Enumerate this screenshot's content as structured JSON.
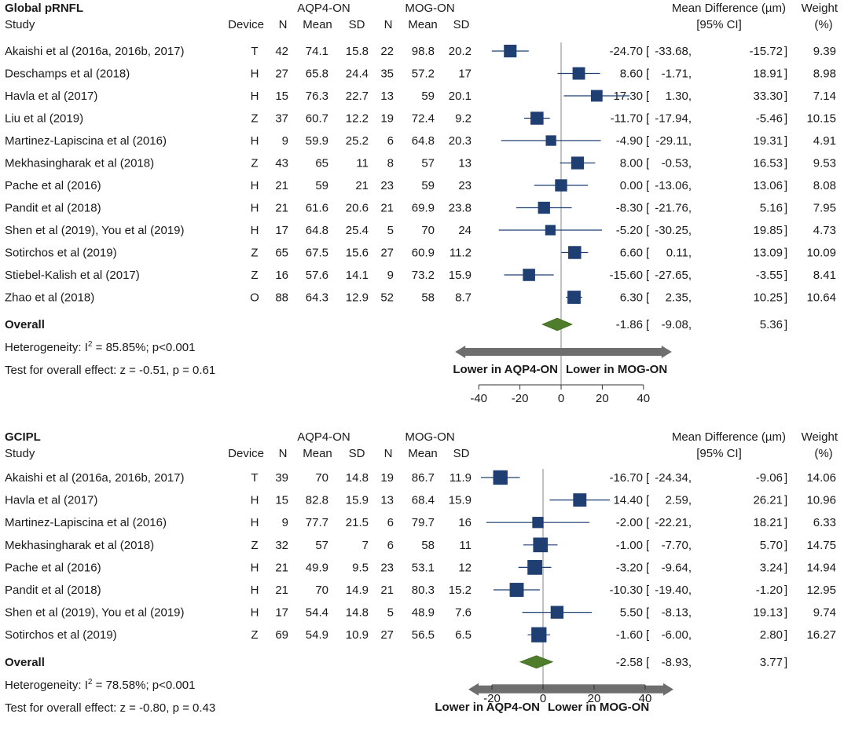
{
  "chart_data": [
    {
      "type": "forest",
      "title": "Global pRNFL",
      "columns": {
        "study": "Study",
        "device": "Device",
        "group1": "AQP4-ON",
        "group2": "MOG-ON",
        "n": "N",
        "mean": "Mean",
        "sd": "SD",
        "effect": "Mean Difference (µm)",
        "ci": "[95% CI]",
        "weight": "Weight",
        "weight_unit": "(%)"
      },
      "rows": [
        {
          "study": "Akaishi et al (2016a, 2016b, 2017)",
          "device": "T",
          "n1": "42",
          "mean1": "74.1",
          "sd1": "15.8",
          "n2": "22",
          "mean2": "98.8",
          "sd2": "20.2",
          "md": -24.7,
          "lo": -33.68,
          "hi": -15.72,
          "md_text": "-24.70",
          "lo_text": "-33.68,",
          "hi_text": "-15.72",
          "weight": 9.39,
          "weight_text": "9.39"
        },
        {
          "study": "Deschamps et al (2018)",
          "device": "H",
          "n1": "27",
          "mean1": "65.8",
          "sd1": "24.4",
          "n2": "35",
          "mean2": "57.2",
          "sd2": "17",
          "md": 8.6,
          "lo": -1.71,
          "hi": 18.91,
          "md_text": "8.60",
          "lo_text": "-1.71,",
          "hi_text": "18.91",
          "weight": 8.98,
          "weight_text": "8.98"
        },
        {
          "study": "Havla et al (2017)",
          "device": "H",
          "n1": "15",
          "mean1": "76.3",
          "sd1": "22.7",
          "n2": "13",
          "mean2": "59",
          "sd2": "20.1",
          "md": 17.3,
          "lo": 1.3,
          "hi": 33.3,
          "md_text": "17.30",
          "lo_text": "1.30,",
          "hi_text": "33.30",
          "weight": 7.14,
          "weight_text": "7.14"
        },
        {
          "study": "Liu et al (2019)",
          "device": "Z",
          "n1": "37",
          "mean1": "60.7",
          "sd1": "12.2",
          "n2": "19",
          "mean2": "72.4",
          "sd2": "9.2",
          "md": -11.7,
          "lo": -17.94,
          "hi": -5.46,
          "md_text": "-11.70",
          "lo_text": "-17.94,",
          "hi_text": "-5.46",
          "weight": 10.15,
          "weight_text": "10.15"
        },
        {
          "study": "Martinez-Lapiscina et al (2016)",
          "device": "H",
          "n1": "9",
          "mean1": "59.9",
          "sd1": "25.2",
          "n2": "6",
          "mean2": "64.8",
          "sd2": "20.3",
          "md": -4.9,
          "lo": -29.11,
          "hi": 19.31,
          "md_text": "-4.90",
          "lo_text": "-29.11,",
          "hi_text": "19.31",
          "weight": 4.91,
          "weight_text": "4.91"
        },
        {
          "study": "Mekhasingharak et al (2018)",
          "device": "Z",
          "n1": "43",
          "mean1": "65",
          "sd1": "11",
          "n2": "8",
          "mean2": "57",
          "sd2": "13",
          "md": 8.0,
          "lo": -0.53,
          "hi": 16.53,
          "md_text": "8.00",
          "lo_text": "-0.53,",
          "hi_text": "16.53",
          "weight": 9.53,
          "weight_text": "9.53"
        },
        {
          "study": "Pache et al (2016)",
          "device": "H",
          "n1": "21",
          "mean1": "59",
          "sd1": "21",
          "n2": "23",
          "mean2": "59",
          "sd2": "23",
          "md": 0.0,
          "lo": -13.06,
          "hi": 13.06,
          "md_text": "0.00",
          "lo_text": "-13.06,",
          "hi_text": "13.06",
          "weight": 8.08,
          "weight_text": "8.08"
        },
        {
          "study": "Pandit et al (2018)",
          "device": "H",
          "n1": "21",
          "mean1": "61.6",
          "sd1": "20.6",
          "n2": "21",
          "mean2": "69.9",
          "sd2": "23.8",
          "md": -8.3,
          "lo": -21.76,
          "hi": 5.16,
          "md_text": "-8.30",
          "lo_text": "-21.76,",
          "hi_text": "5.16",
          "weight": 7.95,
          "weight_text": "7.95"
        },
        {
          "study": "Shen et al (2019), You et al (2019)",
          "device": "H",
          "n1": "17",
          "mean1": "64.8",
          "sd1": "25.4",
          "n2": "5",
          "mean2": "70",
          "sd2": "24",
          "md": -5.2,
          "lo": -30.25,
          "hi": 19.85,
          "md_text": "-5.20",
          "lo_text": "-30.25,",
          "hi_text": "19.85",
          "weight": 4.73,
          "weight_text": "4.73"
        },
        {
          "study": "Sotirchos et al (2019)",
          "device": "Z",
          "n1": "65",
          "mean1": "67.5",
          "sd1": "15.6",
          "n2": "27",
          "mean2": "60.9",
          "sd2": "11.2",
          "md": 6.6,
          "lo": 0.11,
          "hi": 13.09,
          "md_text": "6.60",
          "lo_text": "0.11,",
          "hi_text": "13.09",
          "weight": 10.09,
          "weight_text": "10.09"
        },
        {
          "study": "Stiebel-Kalish et al (2017)",
          "device": "Z",
          "n1": "16",
          "mean1": "57.6",
          "sd1": "14.1",
          "n2": "9",
          "mean2": "73.2",
          "sd2": "15.9",
          "md": -15.6,
          "lo": -27.65,
          "hi": -3.55,
          "md_text": "-15.60",
          "lo_text": "-27.65,",
          "hi_text": "-3.55",
          "weight": 8.41,
          "weight_text": "8.41"
        },
        {
          "study": "Zhao et al (2018)",
          "device": "O",
          "n1": "88",
          "mean1": "64.3",
          "sd1": "12.9",
          "n2": "52",
          "mean2": "58",
          "sd2": "8.7",
          "md": 6.3,
          "lo": 2.35,
          "hi": 10.25,
          "md_text": "6.30",
          "lo_text": "2.35,",
          "hi_text": "10.25",
          "weight": 10.64,
          "weight_text": "10.64"
        }
      ],
      "overall": {
        "label": "Overall",
        "md": -1.86,
        "lo": -9.08,
        "hi": 5.36,
        "md_text": "-1.86",
        "lo_text": "-9.08,",
        "hi_text": "5.36"
      },
      "heterogeneity": {
        "prefix": "Heterogeneity: I",
        "sup": "2",
        "suffix": " = 85.85%; p<0.001"
      },
      "overall_test": "Test for overall effect: z = -0.51, p = 0.61",
      "arrow_left": "Lower in AQP4-ON",
      "arrow_right": "Lower in MOG-ON",
      "xlim": [
        -40,
        40
      ],
      "ticks": [
        -40,
        -20,
        0,
        20,
        40
      ],
      "tick_labels": [
        "-40",
        "-20",
        "0",
        "20",
        "40"
      ]
    },
    {
      "type": "forest",
      "title": "GCIPL",
      "columns": {
        "study": "Study",
        "device": "Device",
        "group1": "AQP4-ON",
        "group2": "MOG-ON",
        "n": "N",
        "mean": "Mean",
        "sd": "SD",
        "effect": "Mean Difference (µm)",
        "ci": "[95% CI]",
        "weight": "Weight",
        "weight_unit": "(%)"
      },
      "rows": [
        {
          "study": "Akaishi et al (2016a, 2016b, 2017)",
          "device": "T",
          "n1": "39",
          "mean1": "70",
          "sd1": "14.8",
          "n2": "19",
          "mean2": "86.7",
          "sd2": "11.9",
          "md": -16.7,
          "lo": -24.34,
          "hi": -9.06,
          "md_text": "-16.70",
          "lo_text": "-24.34,",
          "hi_text": "-9.06",
          "weight": 14.06,
          "weight_text": "14.06"
        },
        {
          "study": "Havla et al (2017)",
          "device": "H",
          "n1": "15",
          "mean1": "82.8",
          "sd1": "15.9",
          "n2": "13",
          "mean2": "68.4",
          "sd2": "15.9",
          "md": 14.4,
          "lo": 2.59,
          "hi": 26.21,
          "md_text": "14.40",
          "lo_text": "2.59,",
          "hi_text": "26.21",
          "weight": 10.96,
          "weight_text": "10.96"
        },
        {
          "study": "Martinez-Lapiscina et al (2016)",
          "device": "H",
          "n1": "9",
          "mean1": "77.7",
          "sd1": "21.5",
          "n2": "6",
          "mean2": "79.7",
          "sd2": "16",
          "md": -2.0,
          "lo": -22.21,
          "hi": 18.21,
          "md_text": "-2.00",
          "lo_text": "-22.21,",
          "hi_text": "18.21",
          "weight": 6.33,
          "weight_text": "6.33"
        },
        {
          "study": "Mekhasingharak et al (2018)",
          "device": "Z",
          "n1": "32",
          "mean1": "57",
          "sd1": "7",
          "n2": "6",
          "mean2": "58",
          "sd2": "11",
          "md": -1.0,
          "lo": -7.7,
          "hi": 5.7,
          "md_text": "-1.00",
          "lo_text": "-7.70,",
          "hi_text": "5.70",
          "weight": 14.75,
          "weight_text": "14.75"
        },
        {
          "study": "Pache et al (2016)",
          "device": "H",
          "n1": "21",
          "mean1": "49.9",
          "sd1": "9.5",
          "n2": "23",
          "mean2": "53.1",
          "sd2": "12",
          "md": -3.2,
          "lo": -9.64,
          "hi": 3.24,
          "md_text": "-3.20",
          "lo_text": "-9.64,",
          "hi_text": "3.24",
          "weight": 14.94,
          "weight_text": "14.94"
        },
        {
          "study": "Pandit et al (2018)",
          "device": "H",
          "n1": "21",
          "mean1": "70",
          "sd1": "14.9",
          "n2": "21",
          "mean2": "80.3",
          "sd2": "15.2",
          "md": -10.3,
          "lo": -19.4,
          "hi": -1.2,
          "md_text": "-10.30",
          "lo_text": "-19.40,",
          "hi_text": "-1.20",
          "weight": 12.95,
          "weight_text": "12.95"
        },
        {
          "study": "Shen et al (2019), You et al (2019)",
          "device": "H",
          "n1": "17",
          "mean1": "54.4",
          "sd1": "14.8",
          "n2": "5",
          "mean2": "48.9",
          "sd2": "7.6",
          "md": 5.5,
          "lo": -8.13,
          "hi": 19.13,
          "md_text": "5.50",
          "lo_text": "-8.13,",
          "hi_text": "19.13",
          "weight": 9.74,
          "weight_text": "9.74"
        },
        {
          "study": "Sotirchos et al (2019)",
          "device": "Z",
          "n1": "69",
          "mean1": "54.9",
          "sd1": "10.9",
          "n2": "27",
          "mean2": "56.5",
          "sd2": "6.5",
          "md": -1.6,
          "lo": -6.0,
          "hi": 2.8,
          "md_text": "-1.60",
          "lo_text": "-6.00,",
          "hi_text": "2.80",
          "weight": 16.27,
          "weight_text": "16.27"
        }
      ],
      "overall": {
        "label": "Overall",
        "md": -2.58,
        "lo": -8.93,
        "hi": 3.77,
        "md_text": "-2.58",
        "lo_text": "-8.93,",
        "hi_text": "3.77"
      },
      "heterogeneity": {
        "prefix": "Heterogeneity: I",
        "sup": "2",
        "suffix": " = 78.58%; p<0.001"
      },
      "overall_test": "Test for overall effect: z = -0.80, p = 0.43",
      "arrow_left": "Lower in AQP4-ON",
      "arrow_right": "Lower in MOG-ON",
      "xlim": [
        -20,
        40
      ],
      "ticks": [
        -20,
        0,
        20,
        40
      ],
      "tick_labels": [
        "-20",
        "0",
        "20",
        "40"
      ]
    }
  ]
}
